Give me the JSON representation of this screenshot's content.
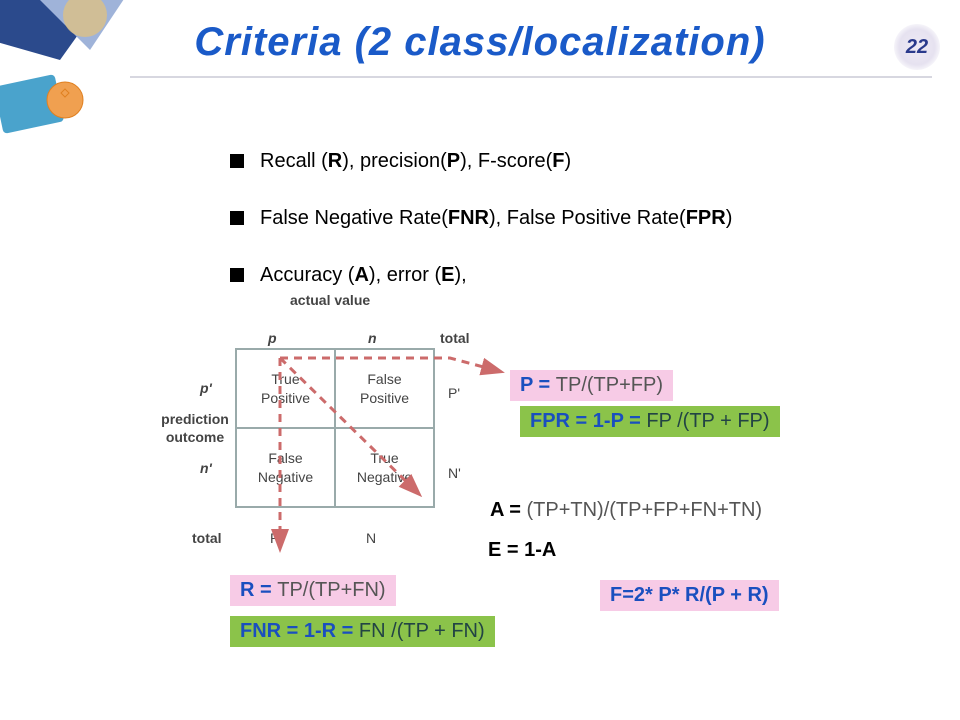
{
  "page_number": "22",
  "title": {
    "text": "Criteria (2 class/localization)",
    "color": "#1a5ac8"
  },
  "divider_color": "#d7d7e0",
  "bullets": [
    {
      "pre": "Recall (",
      "b": "R",
      "mid": "), precision(",
      "b2": "P",
      "mid2": "), F-score(",
      "b3": "F",
      "post": ")"
    },
    {
      "pre": "False Negative Rate(",
      "b": "FNR",
      "mid": "), False Positive Rate(",
      "b2": "FPR",
      "post": ")"
    },
    {
      "pre": "Accuracy (",
      "b": "A",
      "mid": "), error (",
      "b2": "E",
      "post": "),"
    }
  ],
  "matrix": {
    "axis_actual": "actual value",
    "axis_prediction": "prediction outcome",
    "col_labels": {
      "p": "p",
      "n": "n",
      "total": "total"
    },
    "row_labels": {
      "pp": "p'",
      "np": "n'",
      "total": "total"
    },
    "cells": {
      "tp": "True Positive",
      "fp": "False Positive",
      "fn": "False Negative",
      "tn": "True Negative"
    },
    "side": {
      "P": "P'",
      "N": "N'"
    },
    "bottom": {
      "P": "P",
      "N": "N"
    }
  },
  "formulas": {
    "P": {
      "lhs": "P = ",
      "rhs": "TP/(TP+FP)",
      "bg": "#f7cbe6"
    },
    "FPR": {
      "lhs": "FPR = 1-P = ",
      "rhs": "FP /(TP + FP)",
      "bg": "#8bc34a"
    },
    "A": {
      "lhs": "A = ",
      "rhs": "(TP+TN)/(TP+FP+FN+TN)"
    },
    "E": {
      "text": "E = 1-A"
    },
    "R": {
      "lhs": "R = ",
      "rhs": "TP/(TP+FN)",
      "bg": "#f7cbe6"
    },
    "FNR": {
      "lhs": "FNR = 1-R = ",
      "rhs": "FN /(TP + FN)",
      "bg": "#8bc34a"
    },
    "F": {
      "text": "F=2* P* R/(P + R)",
      "bg": "#f7cbe6"
    }
  },
  "arrows": {
    "color": "#cc6b6b",
    "dash": "8 6",
    "width": 3
  }
}
